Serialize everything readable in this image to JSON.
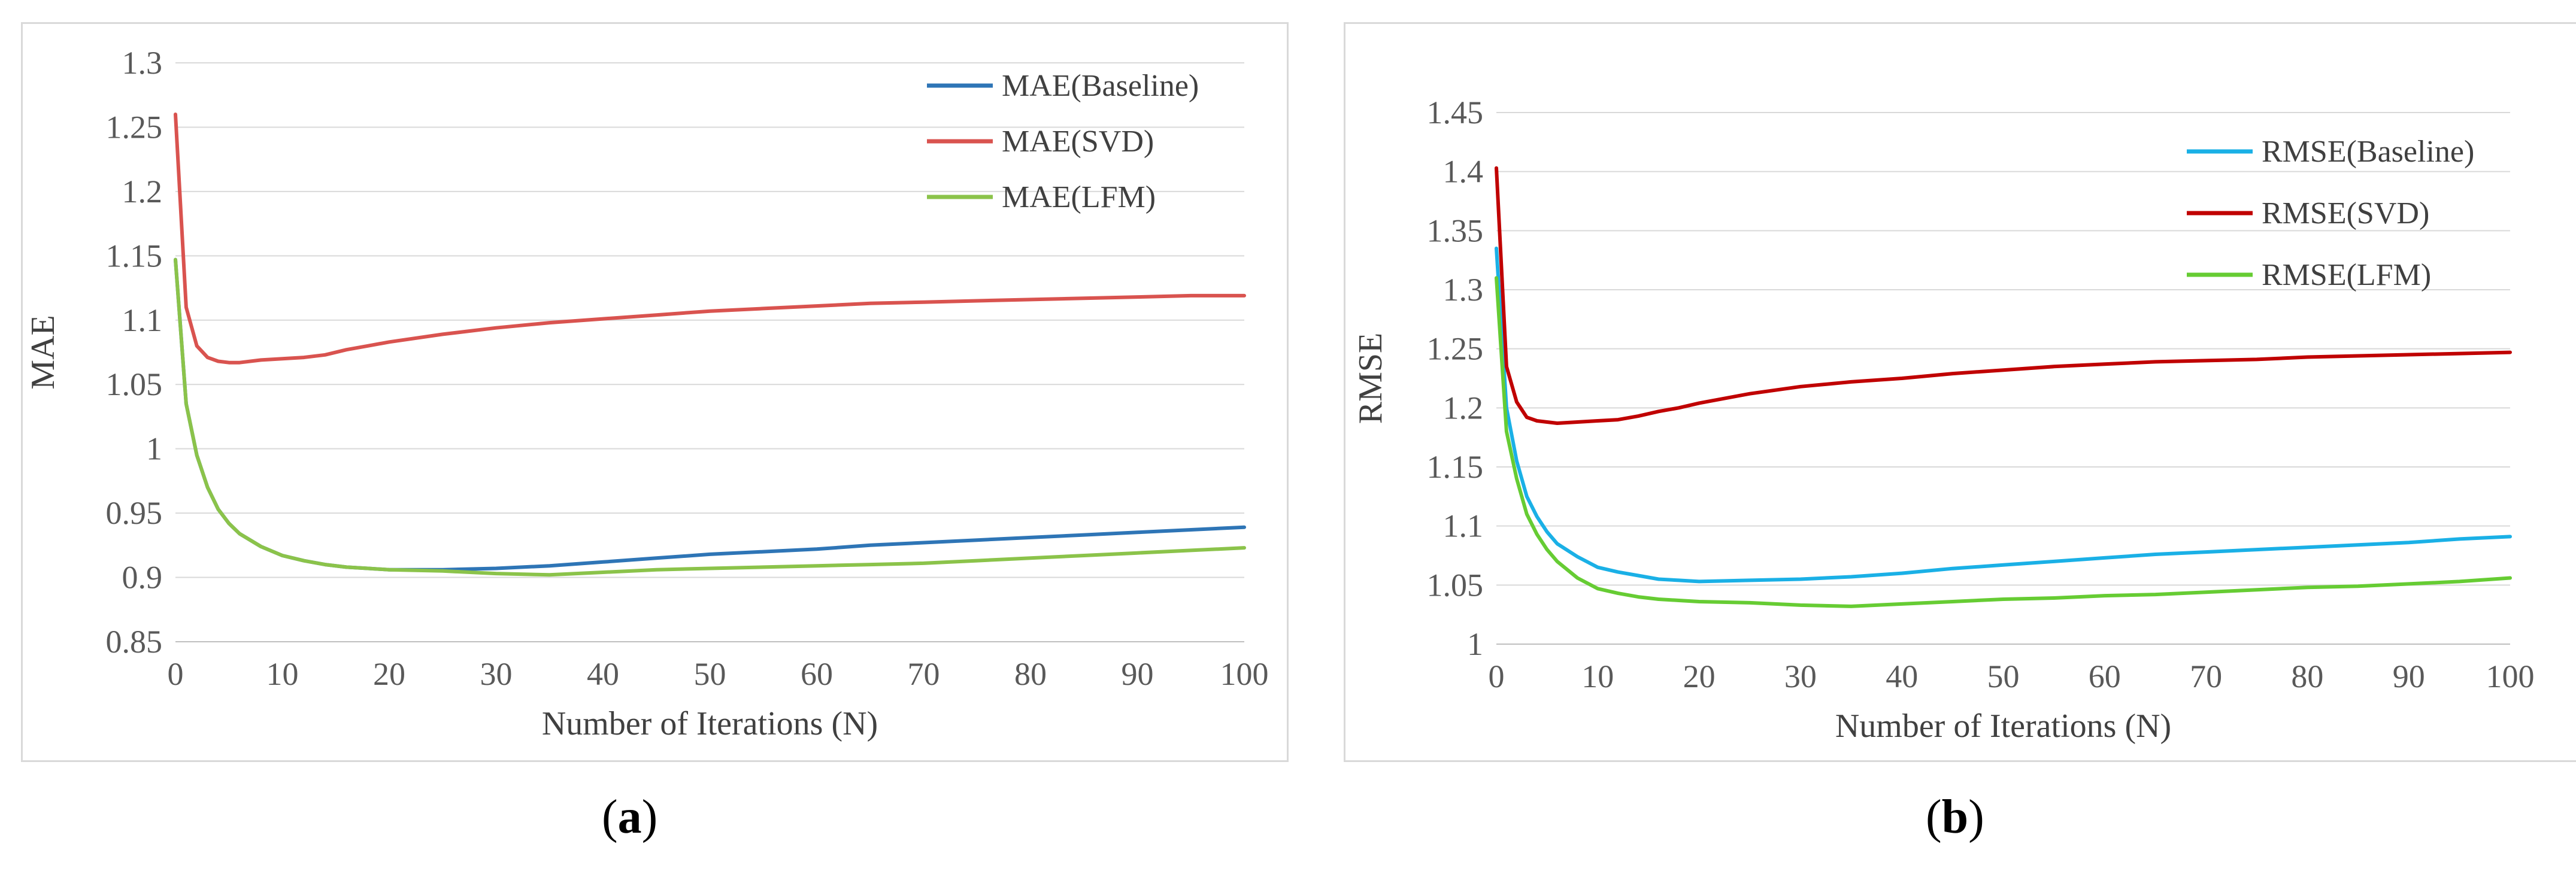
{
  "chart_data": [
    {
      "type": "line",
      "panel_label": "a",
      "xlabel": "Number of Iterations (N)",
      "ylabel": "MAE",
      "xlim": [
        0,
        100
      ],
      "ylim": [
        0.85,
        1.3
      ],
      "x_ticks": [
        0,
        10,
        20,
        30,
        40,
        50,
        60,
        70,
        80,
        90,
        100
      ],
      "y_ticks": [
        "0.85",
        "0.9",
        "0.95",
        "1",
        "1.05",
        "1.1",
        "1.15",
        "1.2",
        "1.25",
        "1.3"
      ],
      "grid": "horizontal",
      "legend_position": "top-right",
      "series": [
        {
          "name": "MAE(Baseline)",
          "color": "#2e75b6",
          "x": [
            0,
            1,
            2,
            3,
            4,
            5,
            6,
            8,
            10,
            12,
            14,
            16,
            18,
            20,
            25,
            30,
            35,
            40,
            45,
            50,
            55,
            60,
            65,
            70,
            75,
            80,
            85,
            90,
            95,
            100
          ],
          "y": [
            1.147,
            1.035,
            0.995,
            0.97,
            0.953,
            0.942,
            0.934,
            0.924,
            0.917,
            0.913,
            0.91,
            0.908,
            0.907,
            0.906,
            0.906,
            0.907,
            0.909,
            0.912,
            0.915,
            0.918,
            0.92,
            0.922,
            0.925,
            0.927,
            0.929,
            0.931,
            0.933,
            0.935,
            0.937,
            0.939
          ]
        },
        {
          "name": "MAE(SVD)",
          "color": "#d9534f",
          "x": [
            0,
            1,
            2,
            3,
            4,
            5,
            6,
            8,
            10,
            12,
            14,
            16,
            18,
            20,
            25,
            30,
            35,
            40,
            45,
            50,
            55,
            60,
            65,
            70,
            75,
            80,
            85,
            90,
            95,
            100
          ],
          "y": [
            1.26,
            1.11,
            1.08,
            1.071,
            1.068,
            1.067,
            1.067,
            1.069,
            1.07,
            1.071,
            1.073,
            1.077,
            1.08,
            1.083,
            1.089,
            1.094,
            1.098,
            1.101,
            1.104,
            1.107,
            1.109,
            1.111,
            1.113,
            1.114,
            1.115,
            1.116,
            1.117,
            1.118,
            1.119,
            1.119
          ]
        },
        {
          "name": "MAE(LFM)",
          "color": "#8bc34a",
          "x": [
            0,
            1,
            2,
            3,
            4,
            5,
            6,
            8,
            10,
            12,
            14,
            16,
            18,
            20,
            25,
            30,
            35,
            40,
            45,
            50,
            55,
            60,
            65,
            70,
            75,
            80,
            85,
            90,
            95,
            100
          ],
          "y": [
            1.147,
            1.035,
            0.995,
            0.97,
            0.953,
            0.942,
            0.934,
            0.924,
            0.917,
            0.913,
            0.91,
            0.908,
            0.907,
            0.906,
            0.905,
            0.903,
            0.902,
            0.904,
            0.906,
            0.907,
            0.908,
            0.909,
            0.91,
            0.911,
            0.913,
            0.915,
            0.917,
            0.919,
            0.921,
            0.923
          ]
        }
      ]
    },
    {
      "type": "line",
      "panel_label": "b",
      "xlabel": "Number of Iterations (N)",
      "ylabel": "RMSE",
      "xlim": [
        0,
        100
      ],
      "ylim": [
        1.0,
        1.45
      ],
      "x_ticks": [
        0,
        10,
        20,
        30,
        40,
        50,
        60,
        70,
        80,
        90,
        100
      ],
      "y_ticks": [
        "1",
        "1.05",
        "1.1",
        "1.15",
        "1.2",
        "1.25",
        "1.3",
        "1.35",
        "1.4",
        "1.45"
      ],
      "grid": "horizontal",
      "legend_position": "top-right",
      "series": [
        {
          "name": "RMSE(Baseline)",
          "color": "#1ab0e6",
          "x": [
            0,
            1,
            2,
            3,
            4,
            5,
            6,
            8,
            10,
            12,
            14,
            16,
            18,
            20,
            25,
            30,
            35,
            40,
            45,
            50,
            55,
            60,
            65,
            70,
            75,
            80,
            85,
            90,
            95,
            100
          ],
          "y": [
            1.335,
            1.2,
            1.155,
            1.125,
            1.108,
            1.095,
            1.085,
            1.074,
            1.065,
            1.061,
            1.058,
            1.055,
            1.054,
            1.053,
            1.054,
            1.055,
            1.057,
            1.06,
            1.064,
            1.067,
            1.07,
            1.073,
            1.076,
            1.078,
            1.08,
            1.082,
            1.084,
            1.086,
            1.089,
            1.091
          ]
        },
        {
          "name": "RMSE(SVD)",
          "color": "#c00000",
          "x": [
            0,
            1,
            2,
            3,
            4,
            5,
            6,
            8,
            10,
            12,
            14,
            16,
            18,
            20,
            25,
            30,
            35,
            40,
            45,
            50,
            55,
            60,
            65,
            70,
            75,
            80,
            85,
            90,
            95,
            100
          ],
          "y": [
            1.403,
            1.235,
            1.205,
            1.192,
            1.189,
            1.188,
            1.187,
            1.188,
            1.189,
            1.19,
            1.193,
            1.197,
            1.2,
            1.204,
            1.212,
            1.218,
            1.222,
            1.225,
            1.229,
            1.232,
            1.235,
            1.237,
            1.239,
            1.24,
            1.241,
            1.243,
            1.244,
            1.245,
            1.246,
            1.247
          ]
        },
        {
          "name": "RMSE(LFM)",
          "color": "#66cc33",
          "x": [
            0,
            1,
            2,
            3,
            4,
            5,
            6,
            8,
            10,
            12,
            14,
            16,
            18,
            20,
            25,
            30,
            35,
            40,
            45,
            50,
            55,
            60,
            65,
            70,
            75,
            80,
            85,
            90,
            95,
            100
          ],
          "y": [
            1.31,
            1.18,
            1.14,
            1.11,
            1.093,
            1.08,
            1.07,
            1.056,
            1.047,
            1.043,
            1.04,
            1.038,
            1.037,
            1.036,
            1.035,
            1.033,
            1.032,
            1.034,
            1.036,
            1.038,
            1.039,
            1.041,
            1.042,
            1.044,
            1.046,
            1.048,
            1.049,
            1.051,
            1.053,
            1.056
          ]
        }
      ]
    }
  ]
}
